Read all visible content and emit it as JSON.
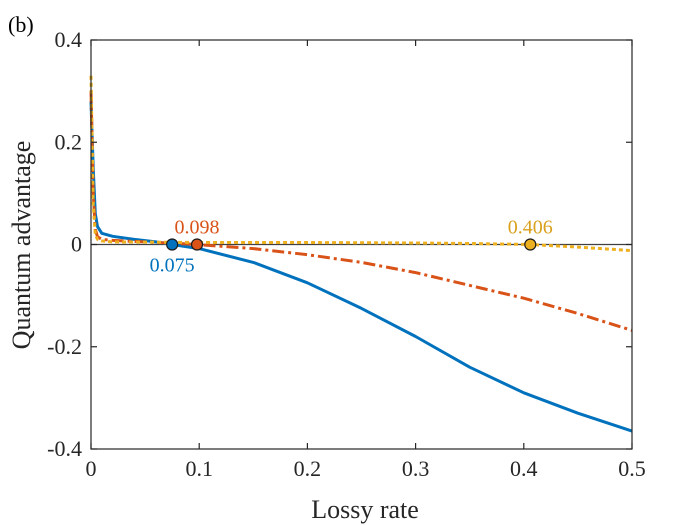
{
  "chart_data": {
    "type": "line",
    "panel_label": "(b)",
    "xlabel": "Lossy rate",
    "ylabel": "Quantum advantage",
    "xlim": [
      0,
      0.5
    ],
    "ylim": [
      -0.4,
      0.4
    ],
    "xticks": [
      0,
      0.1,
      0.2,
      0.3,
      0.4,
      0.5
    ],
    "xtick_labels": [
      "0",
      "0.1",
      "0.2",
      "0.3",
      "0.4",
      "0.5"
    ],
    "yticks": [
      -0.4,
      -0.2,
      0,
      0.2,
      0.4
    ],
    "ytick_labels": [
      "-0.4",
      "-0.2",
      "0",
      "0.2",
      "0.4"
    ],
    "grid": false,
    "zero_line": true,
    "series": [
      {
        "color": "#0072BD",
        "style": "solid",
        "x": [
          0,
          0.002,
          0.004,
          0.006,
          0.01,
          0.02,
          0.04,
          0.06,
          0.075,
          0.1,
          0.15,
          0.2,
          0.25,
          0.3,
          0.35,
          0.4,
          0.45,
          0.5
        ],
        "y": [
          0.28,
          0.15,
          0.06,
          0.035,
          0.022,
          0.016,
          0.01,
          0.005,
          0.0,
          -0.008,
          -0.035,
          -0.075,
          -0.125,
          -0.18,
          -0.24,
          -0.29,
          -0.33,
          -0.365
        ]
      },
      {
        "color": "#D95319",
        "style": "dashdot",
        "x": [
          0,
          0.002,
          0.004,
          0.006,
          0.01,
          0.02,
          0.05,
          0.098,
          0.15,
          0.2,
          0.25,
          0.3,
          0.35,
          0.4,
          0.45,
          0.5
        ],
        "y": [
          0.3,
          0.1,
          0.03,
          0.015,
          0.01,
          0.008,
          0.005,
          0.0,
          -0.008,
          -0.02,
          -0.035,
          -0.055,
          -0.08,
          -0.105,
          -0.135,
          -0.168
        ]
      },
      {
        "color": "#EDB120",
        "style": "dotted",
        "x": [
          0,
          0.002,
          0.004,
          0.006,
          0.01,
          0.02,
          0.1,
          0.2,
          0.3,
          0.35,
          0.406,
          0.45,
          0.5
        ],
        "y": [
          0.33,
          0.08,
          0.02,
          0.01,
          0.007,
          0.005,
          0.004,
          0.004,
          0.003,
          0.002,
          0.0,
          -0.005,
          -0.012
        ]
      }
    ],
    "markers": [
      {
        "x": 0.075,
        "y": 0,
        "label": "0.075",
        "color": "#0072BD",
        "label_pos": "below"
      },
      {
        "x": 0.098,
        "y": 0,
        "label": "0.098",
        "color": "#D95319",
        "label_pos": "above"
      },
      {
        "x": 0.406,
        "y": 0,
        "label": "0.406",
        "color": "#EDB120",
        "label_pos": "above"
      }
    ]
  },
  "colors": {
    "axis": "#262626",
    "zero_line": "#404040",
    "annotation_blue": "#0072BD",
    "annotation_orange": "#D95319",
    "annotation_yellow_text": "#D9A01E"
  }
}
